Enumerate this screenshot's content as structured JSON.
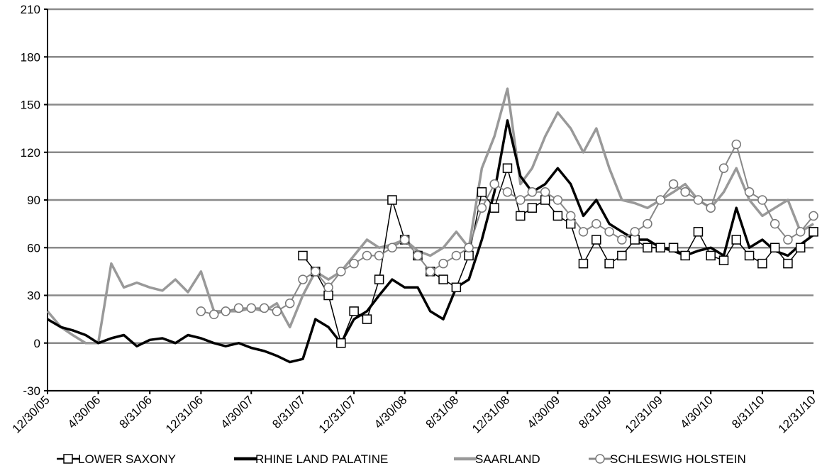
{
  "chart_data": {
    "type": "line",
    "x": [
      "12/30/05",
      "1/31/06",
      "2/28/06",
      "3/31/06",
      "4/30/06",
      "5/31/06",
      "6/30/06",
      "7/31/06",
      "8/31/06",
      "9/30/06",
      "10/31/06",
      "11/30/06",
      "12/31/06",
      "1/31/07",
      "2/28/07",
      "3/31/07",
      "4/30/07",
      "5/31/07",
      "6/30/07",
      "7/31/07",
      "8/31/07",
      "9/30/07",
      "10/31/07",
      "11/30/07",
      "12/31/07",
      "1/31/08",
      "2/29/08",
      "3/31/08",
      "4/30/08",
      "5/31/08",
      "6/30/08",
      "7/31/08",
      "8/31/08",
      "9/30/08",
      "10/31/08",
      "11/30/08",
      "12/31/08",
      "1/31/09",
      "2/28/09",
      "3/31/09",
      "4/30/09",
      "5/31/09",
      "6/30/09",
      "7/31/09",
      "8/31/09",
      "9/30/09",
      "10/31/09",
      "11/30/09",
      "12/31/09",
      "1/31/10",
      "2/28/10",
      "3/31/10",
      "4/30/10",
      "5/31/10",
      "6/30/10",
      "7/31/10",
      "8/31/10",
      "9/30/10",
      "10/31/10",
      "11/30/10",
      "12/31/10"
    ],
    "series": [
      {
        "name": "SAARLAND",
        "color": "#999999",
        "marker": "none",
        "values": [
          20,
          10,
          5,
          0,
          0,
          50,
          35,
          38,
          35,
          33,
          40,
          32,
          45,
          20,
          20,
          20,
          22,
          20,
          25,
          10,
          30,
          45,
          40,
          45,
          55,
          65,
          60,
          62,
          65,
          58,
          55,
          60,
          70,
          60,
          110,
          130,
          160,
          100,
          110,
          130,
          145,
          135,
          120,
          135,
          110,
          90,
          88,
          85,
          90,
          95,
          100,
          90,
          85,
          95,
          110,
          90,
          80,
          85,
          90,
          70,
          75
        ]
      },
      {
        "name": "RHINE LAND PALATINE",
        "color": "#000000",
        "marker": "none",
        "values": [
          15,
          10,
          8,
          5,
          0,
          3,
          5,
          -2,
          2,
          3,
          0,
          5,
          3,
          0,
          -2,
          0,
          -3,
          -5,
          -8,
          -12,
          -10,
          15,
          10,
          0,
          15,
          20,
          30,
          40,
          35,
          35,
          20,
          15,
          35,
          40,
          65,
          95,
          140,
          105,
          95,
          100,
          110,
          100,
          80,
          90,
          75,
          70,
          65,
          65,
          60,
          58,
          55,
          58,
          60,
          55,
          85,
          60,
          65,
          58,
          55,
          62,
          68
        ]
      },
      {
        "name": "LOWER SAXONY",
        "color": "#000000",
        "marker": "square",
        "values": [
          null,
          null,
          null,
          null,
          null,
          null,
          null,
          null,
          null,
          null,
          null,
          null,
          null,
          null,
          null,
          null,
          null,
          null,
          null,
          null,
          55,
          45,
          30,
          0,
          20,
          15,
          40,
          90,
          65,
          55,
          45,
          40,
          35,
          55,
          95,
          85,
          110,
          80,
          85,
          90,
          80,
          75,
          50,
          65,
          50,
          55,
          65,
          60,
          60,
          60,
          55,
          70,
          55,
          52,
          65,
          55,
          50,
          60,
          50,
          60,
          70
        ]
      },
      {
        "name": "SCHLESWIG HOLSTEIN",
        "color": "#888888",
        "marker": "circle",
        "values": [
          null,
          null,
          null,
          null,
          null,
          null,
          null,
          null,
          null,
          null,
          null,
          null,
          20,
          18,
          20,
          22,
          22,
          22,
          20,
          25,
          40,
          45,
          35,
          45,
          50,
          55,
          55,
          60,
          65,
          55,
          45,
          50,
          55,
          60,
          85,
          100,
          95,
          90,
          95,
          95,
          90,
          80,
          70,
          75,
          70,
          65,
          70,
          75,
          90,
          100,
          95,
          90,
          85,
          110,
          125,
          95,
          90,
          75,
          65,
          70,
          80
        ]
      }
    ],
    "xlim": [
      "12/30/05",
      "12/31/10"
    ],
    "xticks": [
      "12/30/05",
      "4/30/06",
      "8/31/06",
      "12/31/06",
      "4/30/07",
      "8/31/07",
      "12/31/07",
      "4/30/08",
      "8/31/08",
      "12/31/08",
      "4/30/09",
      "8/31/09",
      "12/31/09",
      "4/30/10",
      "8/31/10",
      "12/31/10"
    ],
    "ylim": [
      -30,
      210
    ],
    "yticks": [
      -30,
      0,
      30,
      60,
      90,
      120,
      150,
      180,
      210
    ],
    "grid": true,
    "legend": "bottom"
  }
}
